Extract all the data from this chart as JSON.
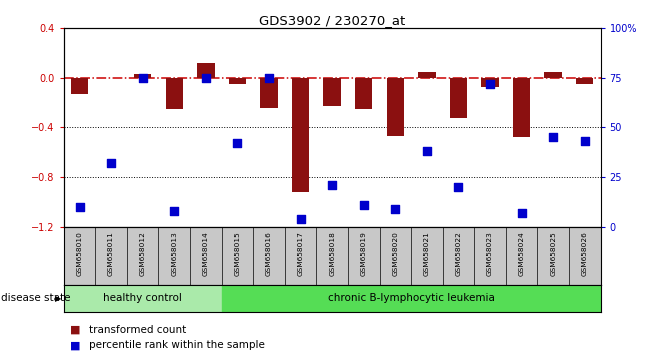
{
  "title": "GDS3902 / 230270_at",
  "samples": [
    "GSM658010",
    "GSM658011",
    "GSM658012",
    "GSM658013",
    "GSM658014",
    "GSM658015",
    "GSM658016",
    "GSM658017",
    "GSM658018",
    "GSM658019",
    "GSM658020",
    "GSM658021",
    "GSM658022",
    "GSM658023",
    "GSM658024",
    "GSM658025",
    "GSM658026"
  ],
  "bar_values": [
    -0.13,
    0.0,
    0.03,
    -0.25,
    0.12,
    -0.05,
    -0.24,
    -0.92,
    -0.23,
    -0.25,
    -0.47,
    0.05,
    -0.32,
    -0.07,
    -0.48,
    0.05,
    -0.05
  ],
  "percentile_values": [
    10,
    32,
    75,
    8,
    75,
    42,
    75,
    4,
    21,
    11,
    9,
    38,
    20,
    72,
    7,
    45,
    43
  ],
  "healthy_count": 5,
  "disease_label_healthy": "healthy control",
  "disease_label_leukemia": "chronic B-lymphocytic leukemia",
  "disease_state_label": "disease state",
  "legend_bar": "transformed count",
  "legend_dot": "percentile rank within the sample",
  "ylim_left": [
    -1.2,
    0.4
  ],
  "yticks_left": [
    -1.2,
    -0.8,
    -0.4,
    0.0,
    0.4
  ],
  "yticks_right": [
    0,
    25,
    50,
    75,
    100
  ],
  "bar_color": "#8B1010",
  "dot_color": "#0000CC",
  "healthy_bg": "#AAEAAA",
  "leukemia_bg": "#55DD55",
  "xlabel_bg": "#C8C8C8",
  "zero_line_color": "#CC0000",
  "dot_size": 28,
  "bar_width": 0.55
}
